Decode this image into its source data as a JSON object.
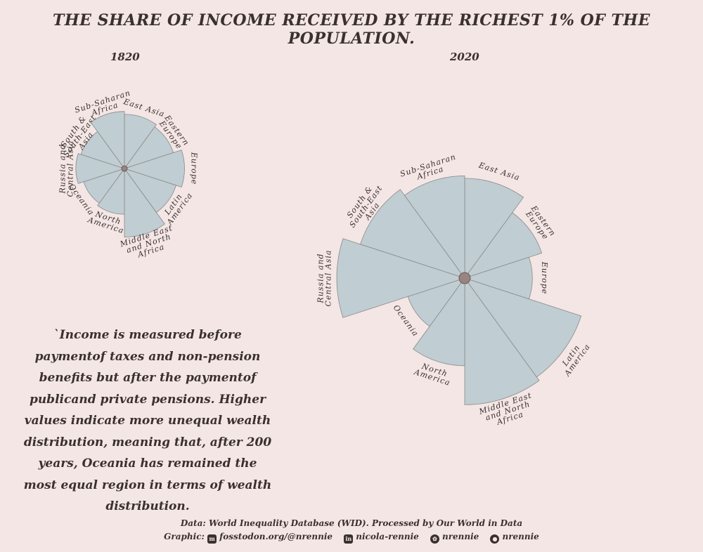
{
  "title": "The share of income received by the richest 1% of the population.",
  "note": "`Income is measured before paymentof taxes and non-pension benefits but after the paymentof publicand private pensions. Higher values indicate more unequal wealth distribution, meaning that, after 200 years, Oceania has remained the most equal region in terms of wealth distribution.",
  "footer": {
    "source": "Data: World Inequality Database (WID). Processed by Our World in Data",
    "graphic_label": "Graphic:",
    "mastodon": "fosstodon.org/@nrennie",
    "linkedin": "nicola-rennie",
    "bluesky": "nrennie",
    "github": "nrennie"
  },
  "icons": {
    "mastodon": "mastodon-icon",
    "linkedin": "linkedin-icon",
    "bluesky": "bluesky-icon",
    "github": "github-icon"
  },
  "colors": {
    "background": "#f3e6e4",
    "wedge_fill": "#c0cdd2",
    "wedge_stroke": "#8a8a8a",
    "center_fill": "#9a8480",
    "text": "#3a302e"
  },
  "chart_data": [
    {
      "type": "polar-bar",
      "title": "1820",
      "categories": [
        "East Asia",
        "Eastern Europe",
        "Europe",
        "Latin America",
        "Middle East and North Africa",
        "North America",
        "Oceania",
        "Russia and Central Asia",
        "South & South-East Asia",
        "Sub-Saharan Africa"
      ],
      "labels": [
        [
          "East Asia"
        ],
        [
          "Eastern",
          "Europe"
        ],
        [
          "Europe"
        ],
        [
          "Latin",
          "America"
        ],
        [
          "Middle East",
          "and North",
          "Africa"
        ],
        [
          "North",
          "America"
        ],
        [
          "Oceania"
        ],
        [
          "Russia and",
          "Central Asia"
        ],
        [
          "South &",
          "South-East",
          "Asia"
        ],
        [
          "Sub-Saharan",
          "Africa"
        ]
      ],
      "values": [
        19,
        18,
        21,
        19,
        24,
        16,
        15,
        17,
        16,
        20
      ],
      "ylim": [
        0,
        30
      ]
    },
    {
      "type": "polar-bar",
      "title": "2020",
      "categories": [
        "East Asia",
        "Eastern Europe",
        "Europe",
        "Latin America",
        "Middle East and North Africa",
        "North America",
        "Oceania",
        "Russia and Central Asia",
        "South & South-East Asia",
        "Sub-Saharan Africa"
      ],
      "labels": [
        [
          "East Asia"
        ],
        [
          "Eastern",
          "Europe"
        ],
        [
          "Europe"
        ],
        [
          "Latin",
          "America"
        ],
        [
          "Middle East",
          "and North",
          "Africa"
        ],
        [
          "North",
          "America"
        ],
        [
          "Oceania"
        ],
        [
          "Russia and",
          "Central Asia"
        ],
        [
          "South &",
          "South-East",
          "Asia"
        ],
        [
          "Sub-Saharan",
          "Africa"
        ]
      ],
      "values": [
        16.4,
        13.3,
        11.1,
        20.1,
        20.8,
        14.4,
        9.8,
        21.0,
        18.0,
        16.8
      ],
      "ylim": [
        0,
        30
      ]
    }
  ]
}
